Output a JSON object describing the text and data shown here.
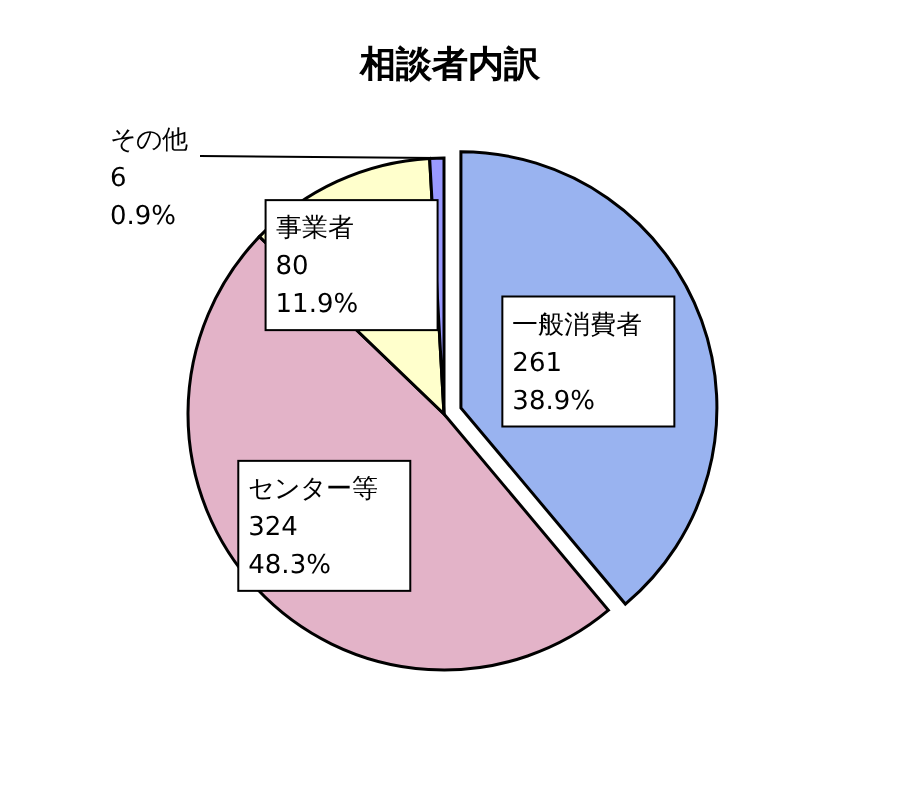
{
  "chart_data": {
    "type": "pie",
    "title": "相談者内訳",
    "categories": [
      "一般消費者",
      "センター等",
      "事業者",
      "その他"
    ],
    "values": [
      261,
      324,
      80,
      6
    ],
    "value_labels": [
      "261\n38.9%",
      "324\n48.3%",
      "80\n11.9%",
      "6\n0.9%"
    ],
    "colors": [
      "#99b3f0",
      "#e3b3c8",
      "#ffffcc",
      "#9999ff"
    ]
  }
}
